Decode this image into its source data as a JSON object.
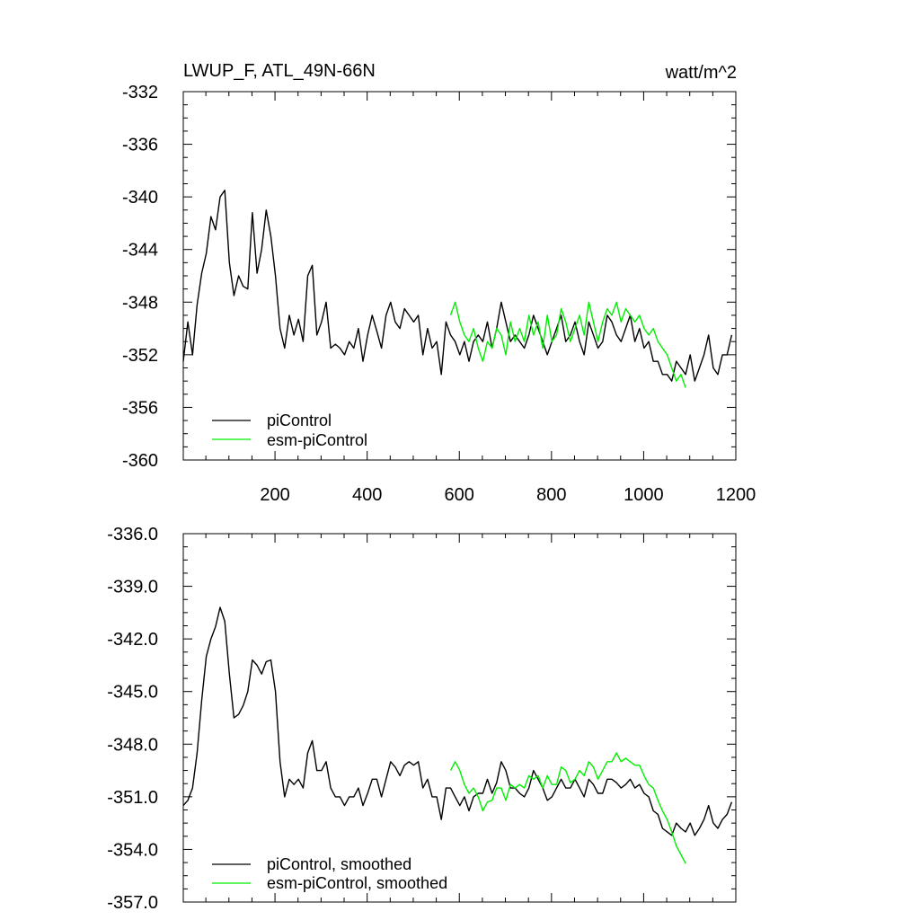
{
  "colors": {
    "piControl": "#000000",
    "esm_piControl": "#00ee00",
    "background": "#ffffff",
    "axis": "#000000"
  },
  "chart_data": [
    {
      "type": "line",
      "title": "LWUP_F, ATL_49N-66N",
      "units": "watt/m^2",
      "xlim": [
        1,
        1200
      ],
      "ylim": [
        -360,
        -332
      ],
      "x_ticks": [
        200,
        400,
        600,
        800,
        1000,
        1200
      ],
      "x_tick_labels": [
        "200",
        "400",
        "600",
        "800",
        "1000",
        "1200"
      ],
      "y_ticks": [
        -360,
        -356,
        -352,
        -348,
        -344,
        -340,
        -336,
        -332
      ],
      "y_tick_labels": [
        "-360",
        "-356",
        "-352",
        "-348",
        "-344",
        "-340",
        "-336",
        "-332"
      ],
      "legend_position": "bottom-left",
      "series": [
        {
          "name": "piControl",
          "x_start": 1,
          "x_step": 10,
          "values": [
            -352.5,
            -349.5,
            -352.0,
            -348.2,
            -345.8,
            -344.3,
            -341.5,
            -342.5,
            -340.0,
            -339.5,
            -345.0,
            -347.5,
            -346.0,
            -346.8,
            -347.0,
            -341.2,
            -345.8,
            -344.0,
            -341.0,
            -343.0,
            -346.0,
            -350.0,
            -351.5,
            -349.0,
            -350.5,
            -349.3,
            -351.0,
            -346.0,
            -345.2,
            -350.5,
            -349.5,
            -348.0,
            -351.5,
            -351.2,
            -351.5,
            -352.0,
            -351.0,
            -351.5,
            -350.0,
            -352.5,
            -350.5,
            -349.0,
            -350.2,
            -351.5,
            -349.0,
            -348.0,
            -349.5,
            -350.0,
            -348.5,
            -349.0,
            -349.5,
            -349.0,
            -352.0,
            -350.0,
            -351.5,
            -351.0,
            -353.5,
            -349.5,
            -350.5,
            -351.0,
            -352.0,
            -351.0,
            -352.5,
            -351.0,
            -350.5,
            -351.0,
            -349.5,
            -351.5,
            -350.0,
            -348.0,
            -349.5,
            -351.0,
            -350.5,
            -351.0,
            -351.5,
            -350.5,
            -349.0,
            -350.0,
            -351.0,
            -352.0,
            -351.0,
            -350.0,
            -349.0,
            -351.0,
            -350.5,
            -349.5,
            -351.0,
            -352.0,
            -349.5,
            -350.5,
            -351.5,
            -351.0,
            -349.0,
            -349.5,
            -350.5,
            -351.0,
            -350.0,
            -349.0,
            -351.0,
            -350.0,
            -351.5,
            -351.0,
            -352.5,
            -352.5,
            -353.5,
            -353.5,
            -354.0,
            -352.5,
            -353.0,
            -353.5,
            -352.0,
            -354.0,
            -353.0,
            -352.0,
            -350.5,
            -353.0,
            -353.5,
            -352.0,
            -352.0,
            -350.5
          ]
        },
        {
          "name": "esm-piControl",
          "x_start": 581,
          "x_step": 10,
          "values": [
            -349.0,
            -348.0,
            -349.5,
            -350.5,
            -351.0,
            -350.0,
            -351.5,
            -352.5,
            -351.0,
            -351.5,
            -350.0,
            -350.5,
            -352.0,
            -349.5,
            -351.0,
            -350.0,
            -351.0,
            -349.0,
            -350.5,
            -349.5,
            -351.5,
            -349.0,
            -351.0,
            -350.5,
            -348.5,
            -349.5,
            -351.0,
            -350.0,
            -349.0,
            -350.5,
            -348.0,
            -349.5,
            -351.0,
            -349.5,
            -348.5,
            -349.0,
            -348.0,
            -349.5,
            -348.5,
            -349.0,
            -349.5,
            -349.0,
            -350.0,
            -350.5,
            -350.0,
            -351.0,
            -351.5,
            -352.0,
            -353.0,
            -354.0,
            -353.5,
            -354.5
          ]
        }
      ]
    },
    {
      "type": "line",
      "title": "",
      "xlim": [
        1,
        1200
      ],
      "ylim": [
        -357.0,
        -336.0
      ],
      "x_ticks": [
        200,
        400,
        600,
        800,
        1000,
        1200
      ],
      "y_ticks": [
        -357.0,
        -354.0,
        -351.0,
        -348.0,
        -345.0,
        -342.0,
        -339.0,
        -336.0
      ],
      "y_tick_labels": [
        "-357.0",
        "-354.0",
        "-351.0",
        "-348.0",
        "-345.0",
        "-342.0",
        "-339.0",
        "-336.0"
      ],
      "legend_position": "bottom-left",
      "series": [
        {
          "name": "piControl, smoothed",
          "x_start": 1,
          "x_step": 10,
          "values": [
            -351.5,
            -351.2,
            -350.5,
            -348.5,
            -345.5,
            -343.0,
            -342.0,
            -341.3,
            -340.2,
            -341.0,
            -344.0,
            -346.5,
            -346.3,
            -345.8,
            -345.0,
            -343.2,
            -343.5,
            -344.0,
            -343.3,
            -343.2,
            -345.0,
            -349.0,
            -351.0,
            -350.0,
            -350.3,
            -350.0,
            -350.5,
            -348.5,
            -347.8,
            -349.5,
            -349.5,
            -349.0,
            -350.5,
            -351.0,
            -351.0,
            -351.5,
            -351.0,
            -351.0,
            -350.5,
            -351.5,
            -350.8,
            -350.0,
            -350.0,
            -351.0,
            -350.0,
            -349.0,
            -349.3,
            -349.8,
            -349.2,
            -349.0,
            -349.2,
            -349.0,
            -350.5,
            -350.0,
            -351.0,
            -351.0,
            -352.3,
            -350.5,
            -350.5,
            -351.0,
            -351.5,
            -351.0,
            -351.8,
            -351.0,
            -350.8,
            -350.8,
            -350.0,
            -350.8,
            -350.2,
            -349.0,
            -349.5,
            -350.5,
            -350.5,
            -350.8,
            -351.0,
            -350.5,
            -349.5,
            -350.0,
            -350.5,
            -351.2,
            -351.0,
            -350.5,
            -350.0,
            -350.5,
            -350.5,
            -350.0,
            -350.5,
            -351.0,
            -350.0,
            -350.3,
            -350.8,
            -350.8,
            -350.0,
            -350.0,
            -350.2,
            -350.5,
            -350.3,
            -350.0,
            -350.5,
            -350.3,
            -350.8,
            -351.0,
            -351.8,
            -352.0,
            -352.8,
            -353.0,
            -353.2,
            -352.5,
            -352.8,
            -353.0,
            -352.5,
            -353.2,
            -352.8,
            -352.3,
            -351.5,
            -352.5,
            -352.8,
            -352.3,
            -352.0,
            -351.3
          ]
        },
        {
          "name": "esm-piControl, smoothed",
          "x_start": 581,
          "x_step": 10,
          "values": [
            -349.5,
            -349.0,
            -349.5,
            -350.3,
            -350.8,
            -350.5,
            -351.0,
            -351.8,
            -351.3,
            -351.2,
            -350.5,
            -350.5,
            -351.2,
            -350.3,
            -350.5,
            -350.3,
            -350.5,
            -349.8,
            -350.0,
            -349.8,
            -350.5,
            -349.8,
            -350.3,
            -350.3,
            -349.3,
            -349.5,
            -350.2,
            -350.0,
            -349.5,
            -349.8,
            -349.0,
            -349.3,
            -350.0,
            -349.5,
            -349.0,
            -349.0,
            -348.5,
            -349.0,
            -348.8,
            -349.0,
            -349.2,
            -349.2,
            -349.8,
            -350.3,
            -350.5,
            -351.2,
            -351.8,
            -352.3,
            -353.0,
            -353.8,
            -354.3,
            -354.8
          ]
        }
      ]
    }
  ]
}
